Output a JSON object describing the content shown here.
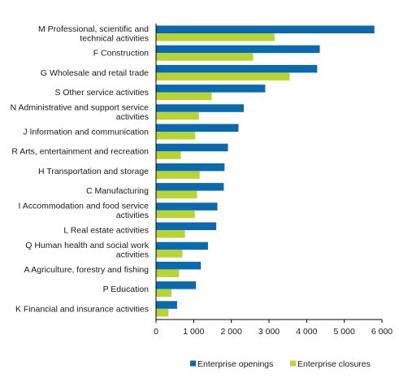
{
  "chart_data": {
    "type": "bar",
    "orientation": "horizontal",
    "categories": [
      [
        "M Professional, scientific and",
        "technical activities"
      ],
      [
        "F Construction"
      ],
      [
        "G Wholesale and retail trade"
      ],
      [
        "S Other service activities"
      ],
      [
        "N Administrative and support service",
        "activities"
      ],
      [
        "J Information and communication"
      ],
      [
        "R Arts, entertainment and recreation"
      ],
      [
        "H Transportation and storage"
      ],
      [
        "C Manufacturing"
      ],
      [
        "I Accommodation and food service",
        "activities"
      ],
      [
        "L Real estate activities"
      ],
      [
        "Q Human health and social work",
        "activities"
      ],
      [
        "A Agriculture, forestry and fishing"
      ],
      [
        "P Education"
      ],
      [
        "K Financial and insurance activities"
      ]
    ],
    "series": [
      {
        "name": "Enterprise openings",
        "color": "#0a6aad",
        "values": [
          5800,
          4350,
          4280,
          2900,
          2330,
          2190,
          1910,
          1820,
          1800,
          1630,
          1600,
          1380,
          1190,
          1060,
          560
        ]
      },
      {
        "name": "Enterprise closures",
        "color": "#b8d432",
        "values": [
          3150,
          2580,
          3550,
          1480,
          1140,
          1040,
          660,
          1160,
          1090,
          1030,
          770,
          700,
          610,
          410,
          330
        ]
      }
    ],
    "xlim": [
      0,
      6000
    ],
    "xticks": [
      0,
      1000,
      2000,
      3000,
      4000,
      5000,
      6000
    ],
    "xtick_labels": [
      "0",
      "1 000",
      "2 000",
      "3 000",
      "4 000",
      "5 000",
      "6 000"
    ],
    "grid": false,
    "legend_position": "bottom"
  }
}
